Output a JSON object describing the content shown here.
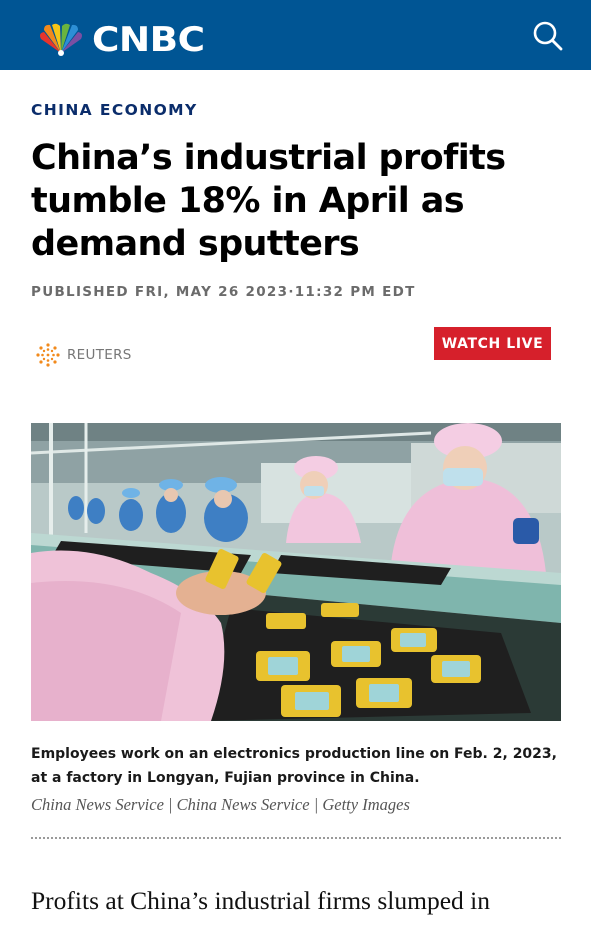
{
  "header": {
    "brand": "CNBC",
    "search_icon": "search-icon",
    "logo_icon": "peacock-logo-icon",
    "bar_color": "#005594"
  },
  "article": {
    "section": "CHINA ECONOMY",
    "headline": "China’s industrial profits tumble 18% in April as demand sputters",
    "published": "PUBLISHED FRI, MAY 26 2023·11:32 PM EDT",
    "source": "REUTERS",
    "source_icon": "reuters-logo-icon",
    "watch_live": "WATCH LIVE",
    "watch_live_color": "#d6202b",
    "image_caption": "Employees work on an electronics production line on Feb. 2, 2023, at a factory in Longyan, Fujian province in China.",
    "image_credit": "China News Service | China News Service | Getty Images",
    "body_first_line": "Profits at China’s industrial firms slumped in"
  }
}
